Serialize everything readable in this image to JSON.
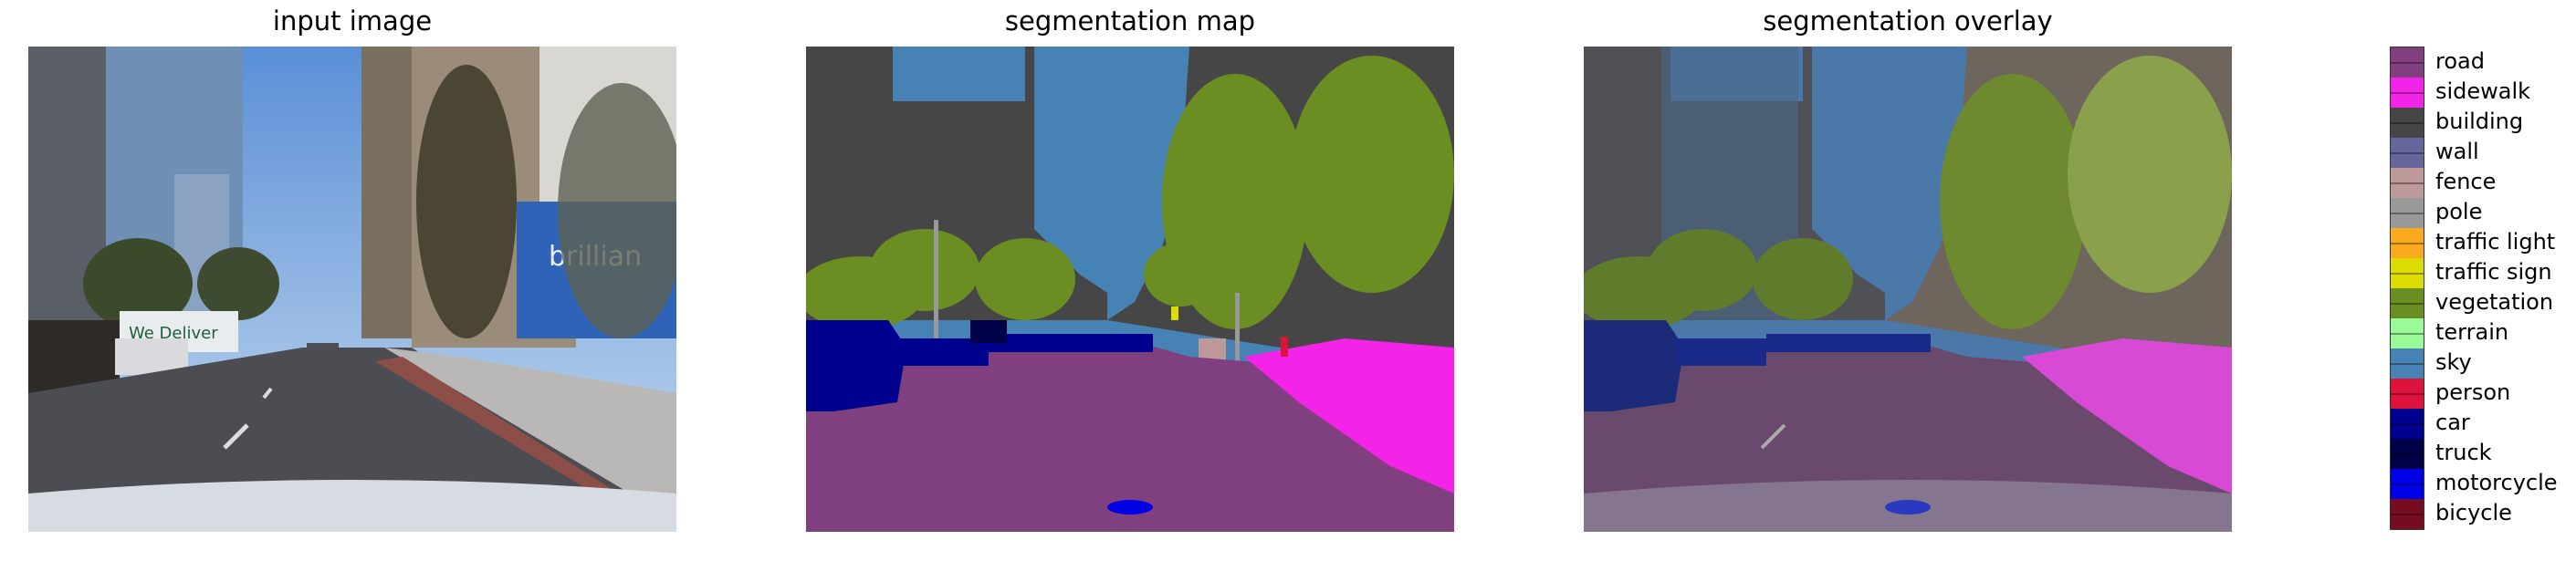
{
  "panels": {
    "input": {
      "title": "input image"
    },
    "map": {
      "title": "segmentation map"
    },
    "overlay": {
      "title": "segmentation overlay"
    }
  },
  "scene_text": {
    "storefront_sign": "brillian",
    "truck_sign": "We Deliver"
  },
  "legend": {
    "classes": [
      {
        "label": "road",
        "color": "#804080"
      },
      {
        "label": "sidewalk",
        "color": "#f423e8"
      },
      {
        "label": "building",
        "color": "#464646"
      },
      {
        "label": "wall",
        "color": "#66669c"
      },
      {
        "label": "fence",
        "color": "#be9999"
      },
      {
        "label": "pole",
        "color": "#999999"
      },
      {
        "label": "traffic light",
        "color": "#faaa1e"
      },
      {
        "label": "traffic sign",
        "color": "#dcdc00"
      },
      {
        "label": "vegetation",
        "color": "#6b8e23"
      },
      {
        "label": "terrain",
        "color": "#98fb98"
      },
      {
        "label": "sky",
        "color": "#4682b4"
      },
      {
        "label": "person",
        "color": "#dc143c"
      },
      {
        "label": "car",
        "color": "#00008e"
      },
      {
        "label": "truck",
        "color": "#000046"
      },
      {
        "label": "motorcycle",
        "color": "#0000e6"
      },
      {
        "label": "bicycle",
        "color": "#770b20"
      }
    ]
  }
}
